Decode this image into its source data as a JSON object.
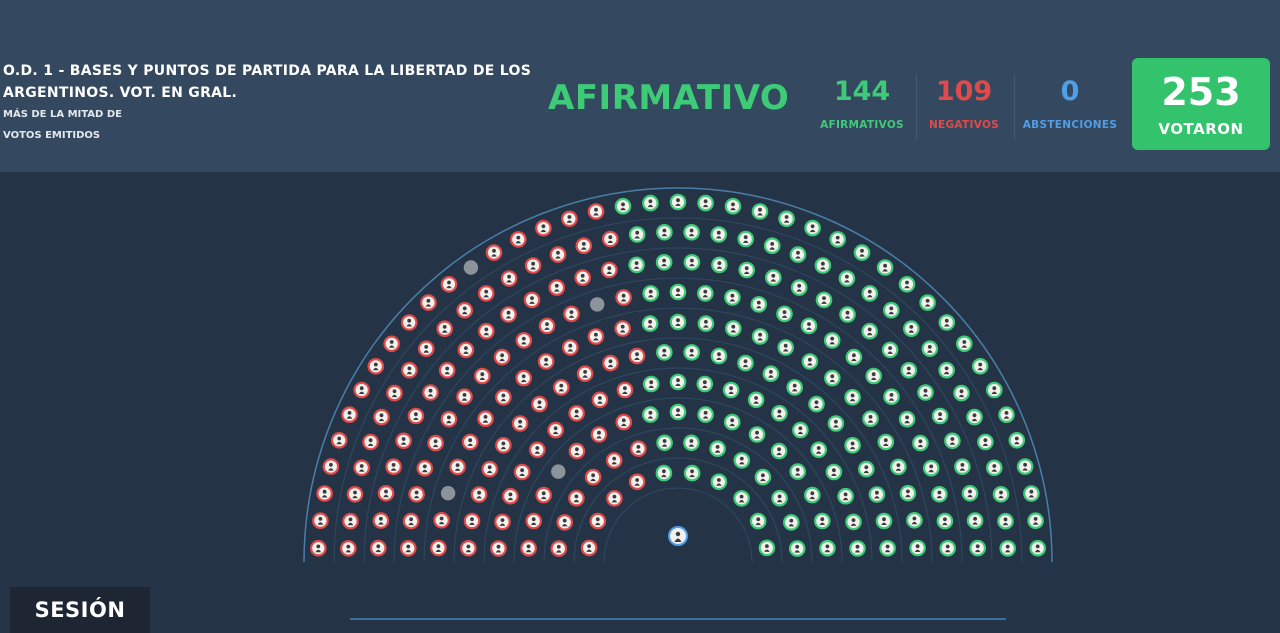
{
  "motion": {
    "title_line1": "O.D. 1 - BASES Y PUNTOS DE PARTIDA PARA LA LIBERTAD DE LOS",
    "title_line2": "ARGENTINOS. VOT. EN GRAL.",
    "majority_line1": "MÁS DE LA MITAD DE",
    "majority_line2": "VOTOS EMITIDOS"
  },
  "result": "AFIRMATIVO",
  "tally": {
    "afirmativos": {
      "value": "144",
      "label": "AFIRMATIVOS"
    },
    "negativos": {
      "value": "109",
      "label": "NEGATIVOS"
    },
    "abstenciones": {
      "value": "0",
      "label": "ABSTENCIONES"
    },
    "votaron": {
      "value": "253",
      "label": "VOTARON"
    }
  },
  "hemicycle": {
    "total_seats": 257,
    "afirmativos": 144,
    "negativos": 109,
    "ausentes": 4,
    "president_icon": "president-seat-icon"
  },
  "colors": {
    "afirmativo": "#3ecb77",
    "negativo": "#e24a4a",
    "abstencion": "#4f9ee8",
    "ausente": "#8c939b",
    "header_bg": "#34495f",
    "body_bg": "#243446"
  },
  "session_tab": "SESIÓN"
}
